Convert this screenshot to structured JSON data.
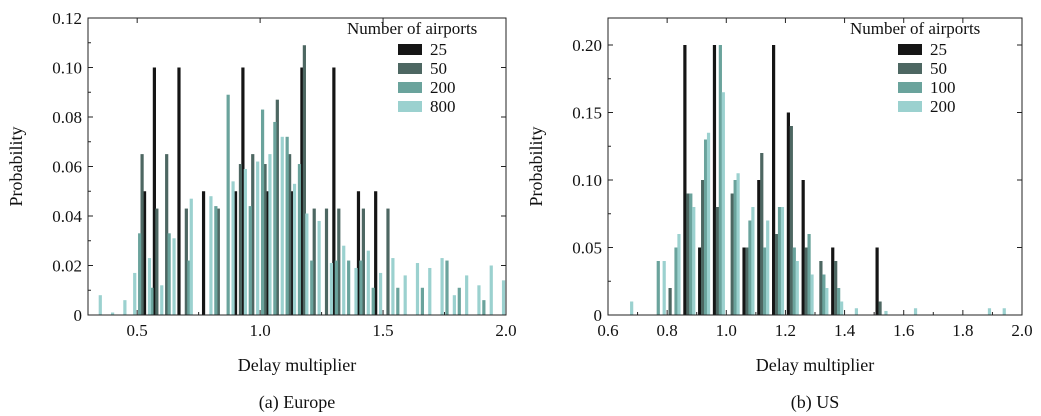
{
  "chart_data": [
    {
      "type": "bar",
      "caption": "(a) Europe",
      "xlabel": "Delay multiplier",
      "ylabel": "Probability",
      "xlim": [
        0.3,
        2.0
      ],
      "ylim": [
        0,
        0.12
      ],
      "xticks": [
        "0.5",
        "1.0",
        "1.5",
        "2.0"
      ],
      "xtick_values": [
        0.5,
        1.0,
        1.5,
        2.0
      ],
      "yticks": [
        "0",
        "0.02",
        "0.04",
        "0.06",
        "0.08",
        "0.10",
        "0.12"
      ],
      "ytick_values": [
        0,
        0.02,
        0.04,
        0.06,
        0.08,
        0.1,
        0.12
      ],
      "legend": {
        "title": "Number of airports",
        "position": "top-right"
      },
      "series": [
        {
          "name": "25",
          "color": "#151515",
          "x": [
            0.53,
            0.57,
            0.67,
            0.77,
            0.9,
            0.93,
            1.03,
            1.13,
            1.17,
            1.3,
            1.4,
            1.47
          ],
          "y": [
            0.05,
            0.1,
            0.1,
            0.05,
            0.05,
            0.1,
            0.05,
            0.05,
            0.1,
            0.1,
            0.05,
            0.05
          ]
        },
        {
          "name": "50",
          "color": "#4d6762",
          "x": [
            0.52,
            0.58,
            0.62,
            0.7,
            0.83,
            0.92,
            0.97,
            1.02,
            1.07,
            1.12,
            1.18,
            1.22,
            1.27,
            1.32,
            1.42,
            1.52
          ],
          "y": [
            0.065,
            0.043,
            0.065,
            0.043,
            0.043,
            0.061,
            0.065,
            0.061,
            0.087,
            0.065,
            0.109,
            0.043,
            0.043,
            0.043,
            0.043,
            0.043
          ]
        },
        {
          "name": "200",
          "color": "#6aa39c",
          "x": [
            0.51,
            0.56,
            0.63,
            0.71,
            0.82,
            0.87,
            0.96,
            1.01,
            1.06,
            1.11,
            1.16,
            1.21,
            1.31,
            1.36,
            1.41,
            1.46,
            1.56,
            1.66,
            1.76,
            1.81,
            1.91
          ],
          "y": [
            0.033,
            0.011,
            0.033,
            0.022,
            0.044,
            0.089,
            0.044,
            0.083,
            0.078,
            0.072,
            0.061,
            0.022,
            0.022,
            0.022,
            0.022,
            0.011,
            0.011,
            0.011,
            0.022,
            0.011,
            0.006
          ]
        },
        {
          "name": "800",
          "color": "#9bd1cf",
          "x": [
            0.35,
            0.4,
            0.45,
            0.49,
            0.55,
            0.6,
            0.65,
            0.72,
            0.8,
            0.89,
            0.94,
            0.99,
            1.04,
            1.09,
            1.14,
            1.19,
            1.24,
            1.29,
            1.34,
            1.39,
            1.44,
            1.49,
            1.54,
            1.59,
            1.64,
            1.69,
            1.74,
            1.79,
            1.84,
            1.89,
            1.94,
            1.99
          ],
          "y": [
            0.008,
            0.001,
            0.006,
            0.017,
            0.023,
            0.012,
            0.031,
            0.047,
            0.048,
            0.054,
            0.059,
            0.062,
            0.065,
            0.072,
            0.053,
            0.041,
            0.038,
            0.021,
            0.028,
            0.019,
            0.026,
            0.017,
            0.023,
            0.016,
            0.021,
            0.019,
            0.023,
            0.008,
            0.016,
            0.012,
            0.02,
            0.014
          ]
        }
      ]
    },
    {
      "type": "bar",
      "caption": "(b) US",
      "xlabel": "Delay multiplier",
      "ylabel": "Probability",
      "xlim": [
        0.6,
        2.0
      ],
      "ylim": [
        0,
        0.22
      ],
      "xticks": [
        "0.6",
        "0.8",
        "1.0",
        "1.2",
        "1.4",
        "1.6",
        "1.8",
        "2.0"
      ],
      "xtick_values": [
        0.6,
        0.8,
        1.0,
        1.2,
        1.4,
        1.6,
        1.8,
        2.0
      ],
      "yticks": [
        "0",
        "0.05",
        "0.10",
        "0.15",
        "0.20"
      ],
      "ytick_values": [
        0,
        0.05,
        0.1,
        0.15,
        0.2
      ],
      "legend": {
        "title": "Number of airports",
        "position": "top-right"
      },
      "series": [
        {
          "name": "25",
          "color": "#151515",
          "x": [
            0.86,
            0.91,
            0.96,
            1.06,
            1.11,
            1.16,
            1.21,
            1.26,
            1.36,
            1.51
          ],
          "y": [
            0.2,
            0.05,
            0.2,
            0.05,
            0.1,
            0.2,
            0.15,
            0.1,
            0.05,
            0.05
          ]
        },
        {
          "name": "50",
          "color": "#4d6762",
          "x": [
            0.81,
            0.87,
            0.92,
            0.97,
            1.02,
            1.07,
            1.12,
            1.17,
            1.22,
            1.27,
            1.32,
            1.37,
            1.52
          ],
          "y": [
            0.02,
            0.09,
            0.1,
            0.08,
            0.09,
            0.05,
            0.12,
            0.06,
            0.14,
            0.05,
            0.04,
            0.04,
            0.01
          ]
        },
        {
          "name": "100",
          "color": "#6aa39c",
          "x": [
            0.77,
            0.83,
            0.88,
            0.93,
            0.98,
            1.03,
            1.08,
            1.13,
            1.18,
            1.23,
            1.28,
            1.33,
            1.38
          ],
          "y": [
            0.04,
            0.05,
            0.09,
            0.13,
            0.2,
            0.1,
            0.07,
            0.05,
            0.08,
            0.05,
            0.06,
            0.03,
            0.02
          ]
        },
        {
          "name": "200",
          "color": "#9bd1cf",
          "x": [
            0.68,
            0.79,
            0.84,
            0.89,
            0.94,
            0.99,
            1.04,
            1.09,
            1.14,
            1.19,
            1.24,
            1.29,
            1.34,
            1.39,
            1.44,
            1.54,
            1.64,
            1.89,
            1.94
          ],
          "y": [
            0.01,
            0.04,
            0.06,
            0.08,
            0.135,
            0.165,
            0.105,
            0.08,
            0.07,
            0.08,
            0.04,
            0.03,
            0.02,
            0.01,
            0.005,
            0.003,
            0.005,
            0.005,
            0.005
          ]
        }
      ]
    }
  ]
}
